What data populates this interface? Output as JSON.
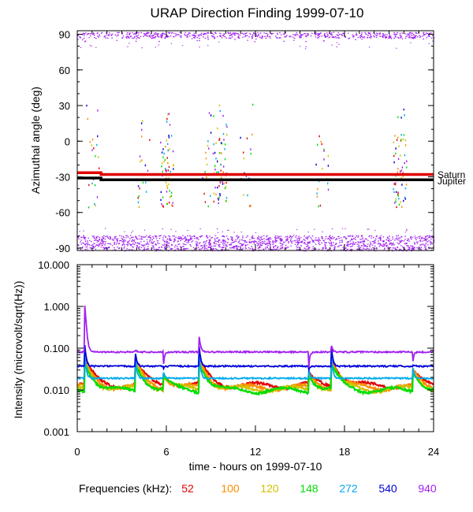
{
  "chart_data": [
    {
      "type": "scatter",
      "title": "URAP Direction Finding  1999-07-10",
      "xlabel": "",
      "ylabel": "Azimuthal angle (deg)",
      "xlim": [
        0,
        24
      ],
      "ylim": [
        -92,
        93
      ],
      "xticks": [
        0,
        6,
        12,
        18,
        24
      ],
      "yticks": [
        90,
        60,
        30,
        0,
        -30,
        -60,
        -90
      ],
      "ytick_labels": [
        "90",
        "60",
        "30",
        "0",
        "-30",
        "-60",
        "-90"
      ],
      "reference_lines": [
        {
          "name": "Saturn",
          "color": "#e00000",
          "points": [
            [
              0,
              -26.5
            ],
            [
              1.6,
              -26.5
            ],
            [
              1.6,
              -28
            ],
            [
              24,
              -28
            ]
          ]
        },
        {
          "name": "Jupiter",
          "color": "#000000",
          "points": [
            [
              0,
              -31
            ],
            [
              1.6,
              -31
            ],
            [
              1.6,
              -32.5
            ],
            [
              24,
              -32.5
            ]
          ]
        }
      ],
      "series_summary": [
        {
          "name": "940 kHz",
          "bands": [
            [
              84,
              92
            ],
            [
              -92,
              -79
            ]
          ]
        },
        {
          "name": "burst directions",
          "times_h": [
            1.0,
            4.5,
            6.0,
            8.8,
            9.6,
            11.4,
            16.5,
            21.7
          ],
          "range_deg": [
            -60,
            45
          ]
        }
      ]
    },
    {
      "type": "line",
      "title": "",
      "xlabel": "time - hours on 1999-07-10",
      "ylabel": "Intensity (microvolt/sqrt(Hz))",
      "yscale": "log",
      "xlim": [
        0,
        24
      ],
      "ylim": [
        0.001,
        10
      ],
      "xticks": [
        0,
        6,
        12,
        18,
        24
      ],
      "xtick_labels": [
        "0",
        "6",
        "12",
        "18",
        "24"
      ],
      "yticks": [
        10,
        1,
        0.1,
        0.01,
        0.001
      ],
      "ytick_labels": [
        "10.000",
        "1.000",
        "0.100",
        "0.010",
        "0.001"
      ],
      "bursts": [
        {
          "t": 0.5,
          "peak": 1.3
        },
        {
          "t": 3.9,
          "peak": 0.095
        },
        {
          "t": 5.8,
          "peak": 0.03
        },
        {
          "t": 8.2,
          "peak": 0.22
        },
        {
          "t": 15.6,
          "peak": 0.03
        },
        {
          "t": 17.1,
          "peak": 0.13
        },
        {
          "t": 22.6,
          "peak": 0.04
        }
      ],
      "series": [
        {
          "name": "52",
          "color": "#e00000",
          "baseline": 0.013
        },
        {
          "name": "100",
          "color": "#ff8c00",
          "baseline": 0.0115
        },
        {
          "name": "120",
          "color": "#d4c000",
          "baseline": 0.0105
        },
        {
          "name": "148",
          "color": "#00dd00",
          "baseline": 0.0098
        },
        {
          "name": "272",
          "color": "#00aaee",
          "baseline": 0.019
        },
        {
          "name": "540",
          "color": "#0000dd",
          "baseline": 0.037
        },
        {
          "name": "940",
          "color": "#a020f0",
          "baseline": 0.081
        }
      ]
    }
  ],
  "legend": {
    "label": "Frequencies (kHz):",
    "items": [
      {
        "label": "52",
        "color": "#e00000"
      },
      {
        "label": "100",
        "color": "#ff8c00"
      },
      {
        "label": "120",
        "color": "#d4c000"
      },
      {
        "label": "148",
        "color": "#00dd00"
      },
      {
        "label": "272",
        "color": "#00aaee"
      },
      {
        "label": "540",
        "color": "#0000dd"
      },
      {
        "label": "940",
        "color": "#a020f0"
      }
    ]
  }
}
